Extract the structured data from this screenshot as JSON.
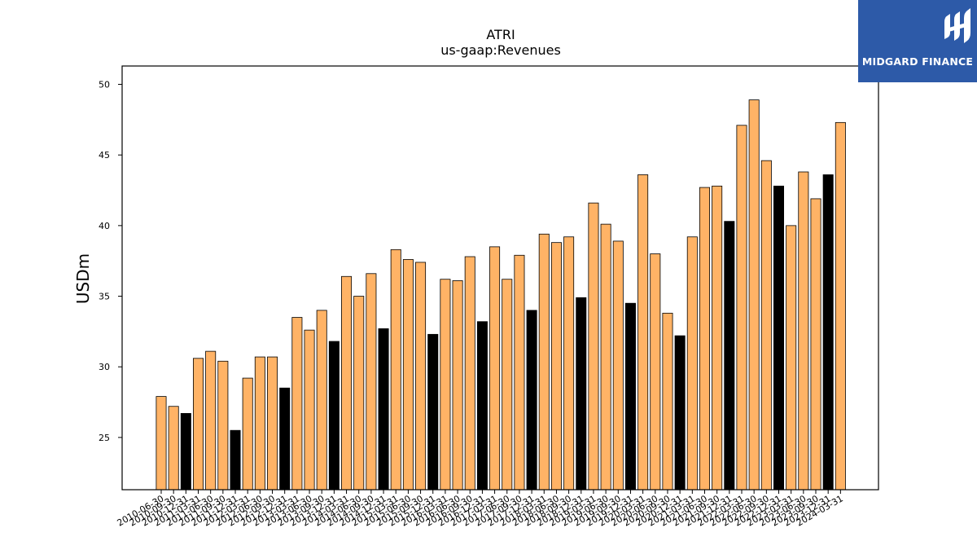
{
  "brand": {
    "name": "MIDGARD FINANCE",
    "icon": "midgard-finance-logo-icon",
    "bg_color": "#2d5aa8"
  },
  "chart_data": {
    "type": "bar",
    "title": "ATRI",
    "subtitle": "us-gaap:Revenues",
    "xlabel": "",
    "ylabel": "USDm",
    "ylim": [
      21.3,
      51.3
    ],
    "yticks": [
      25,
      30,
      35,
      40,
      45,
      50
    ],
    "grid": false,
    "legend": "none",
    "colors": {
      "quarter": "#ffb366",
      "fiscal_year_end": "#000000",
      "edge": "#000000"
    },
    "categories": [
      "2010-06-30",
      "2010-09-30",
      "2010-12-31",
      "2011-03-31",
      "2011-06-30",
      "2011-09-30",
      "2011-12-31",
      "2012-03-31",
      "2012-06-30",
      "2012-09-30",
      "2012-12-31",
      "2013-03-31",
      "2013-06-30",
      "2013-09-30",
      "2013-12-31",
      "2014-03-31",
      "2014-06-30",
      "2014-09-30",
      "2014-12-31",
      "2015-03-31",
      "2015-06-30",
      "2015-09-30",
      "2015-12-31",
      "2016-03-31",
      "2016-06-30",
      "2016-09-30",
      "2016-12-31",
      "2017-03-31",
      "2017-06-30",
      "2017-09-30",
      "2017-12-31",
      "2018-03-31",
      "2018-06-30",
      "2018-09-30",
      "2018-12-31",
      "2019-03-31",
      "2019-06-30",
      "2019-09-30",
      "2019-12-31",
      "2020-03-31",
      "2020-06-30",
      "2020-09-30",
      "2020-12-31",
      "2021-03-31",
      "2021-06-30",
      "2021-09-30",
      "2021-12-31",
      "2022-03-31",
      "2022-06-30",
      "2022-09-30",
      "2022-12-31",
      "2023-03-31",
      "2023-06-30",
      "2023-09-30",
      "2023-12-31",
      "2024-03-31"
    ],
    "values": [
      27.9,
      27.2,
      26.7,
      30.6,
      31.1,
      30.4,
      25.5,
      29.2,
      30.7,
      30.7,
      28.5,
      33.5,
      32.6,
      34.0,
      31.8,
      36.4,
      35.0,
      36.6,
      32.7,
      38.3,
      37.6,
      37.4,
      32.3,
      36.2,
      36.1,
      37.8,
      33.2,
      38.5,
      36.2,
      37.9,
      34.0,
      39.4,
      38.8,
      39.2,
      34.9,
      41.6,
      40.1,
      38.9,
      34.5,
      43.6,
      38.0,
      33.8,
      32.2,
      39.2,
      42.7,
      42.8,
      40.3,
      47.1,
      48.9,
      44.6,
      42.8,
      40.0,
      43.8,
      41.9,
      43.6,
      47.3
    ],
    "fiscal_year_end": [
      false,
      false,
      true,
      false,
      false,
      false,
      true,
      false,
      false,
      false,
      true,
      false,
      false,
      false,
      true,
      false,
      false,
      false,
      true,
      false,
      false,
      false,
      true,
      false,
      false,
      false,
      true,
      false,
      false,
      false,
      true,
      false,
      false,
      false,
      true,
      false,
      false,
      false,
      true,
      false,
      false,
      false,
      true,
      false,
      false,
      false,
      true,
      false,
      false,
      false,
      true,
      false,
      false,
      false,
      true,
      false
    ]
  }
}
